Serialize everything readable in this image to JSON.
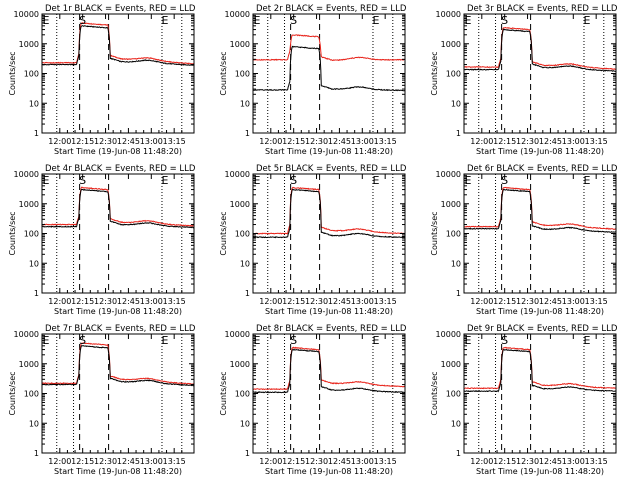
{
  "chart_data": {
    "type": "line",
    "rows": 3,
    "cols": 3,
    "xlabel": "Start Time (19-Jun-08 11:48:20)",
    "ylabel": "Counts/sec",
    "xtick_labels": [
      "12:00",
      "12:15",
      "12:30",
      "12:45",
      "13:00",
      "13:15"
    ],
    "xtick_minutes": [
      0,
      15,
      30,
      45,
      60,
      75
    ],
    "xlim_minutes": [
      -11.67,
      88
    ],
    "ylog": true,
    "ylim": [
      1,
      10000
    ],
    "ytick_labels": [
      "1",
      "10",
      "100",
      "1000",
      "10000"
    ],
    "dotted_lines_minutes": [
      -2,
      9,
      67,
      80
    ],
    "dashed_lines_minutes": [
      13,
      32
    ],
    "markers": [
      {
        "label": "E",
        "minute": -10
      },
      {
        "label": "S",
        "minute": 14
      },
      {
        "label": "E",
        "minute": 68
      }
    ],
    "series_colors": {
      "events": "#000000",
      "lld": "#e8231a"
    },
    "panels": [
      {
        "title": "Det 1r BLACK = Events, RED = LLD",
        "events": {
          "pre": 200,
          "mid": 4000,
          "post": 250,
          "late": 190
        },
        "lld": {
          "pre": 230,
          "mid": 5000,
          "post": 310,
          "late": 210
        }
      },
      {
        "title": "Det 2r BLACK = Events, RED = LLD",
        "events": {
          "pre": 28,
          "mid": 800,
          "post": 30,
          "late": 27
        },
        "lld": {
          "pre": 290,
          "mid": 2000,
          "post": 280,
          "late": 290
        }
      },
      {
        "title": "Det 3r BLACK = Events, RED = LLD",
        "events": {
          "pre": 135,
          "mid": 3000,
          "post": 160,
          "late": 120
        },
        "lld": {
          "pre": 165,
          "mid": 3500,
          "post": 190,
          "late": 140
        }
      },
      {
        "title": "Det 4r BLACK = Events, RED = LLD",
        "events": {
          "pre": 170,
          "mid": 3000,
          "post": 200,
          "late": 160
        },
        "lld": {
          "pre": 200,
          "mid": 3500,
          "post": 240,
          "late": 180
        }
      },
      {
        "title": "Det 5r BLACK = Events, RED = LLD",
        "events": {
          "pre": 75,
          "mid": 3000,
          "post": 85,
          "late": 75
        },
        "lld": {
          "pre": 100,
          "mid": 3500,
          "post": 125,
          "late": 100
        }
      },
      {
        "title": "Det 6r BLACK = Events, RED = LLD",
        "events": {
          "pre": 145,
          "mid": 3000,
          "post": 140,
          "late": 110
        },
        "lld": {
          "pre": 170,
          "mid": 3500,
          "post": 190,
          "late": 140
        }
      },
      {
        "title": "Det 7r BLACK = Events, RED = LLD",
        "events": {
          "pre": 200,
          "mid": 4000,
          "post": 250,
          "late": 185
        },
        "lld": {
          "pre": 220,
          "mid": 5000,
          "post": 300,
          "late": 205
        }
      },
      {
        "title": "Det 8r BLACK = Events, RED = LLD",
        "events": {
          "pre": 110,
          "mid": 3000,
          "post": 130,
          "late": 110
        },
        "lld": {
          "pre": 140,
          "mid": 3500,
          "post": 220,
          "late": 170
        }
      },
      {
        "title": "Det 9r BLACK = Events, RED = LLD",
        "events": {
          "pre": 120,
          "mid": 3000,
          "post": 145,
          "late": 120
        },
        "lld": {
          "pre": 150,
          "mid": 3500,
          "post": 190,
          "late": 150
        }
      }
    ]
  }
}
